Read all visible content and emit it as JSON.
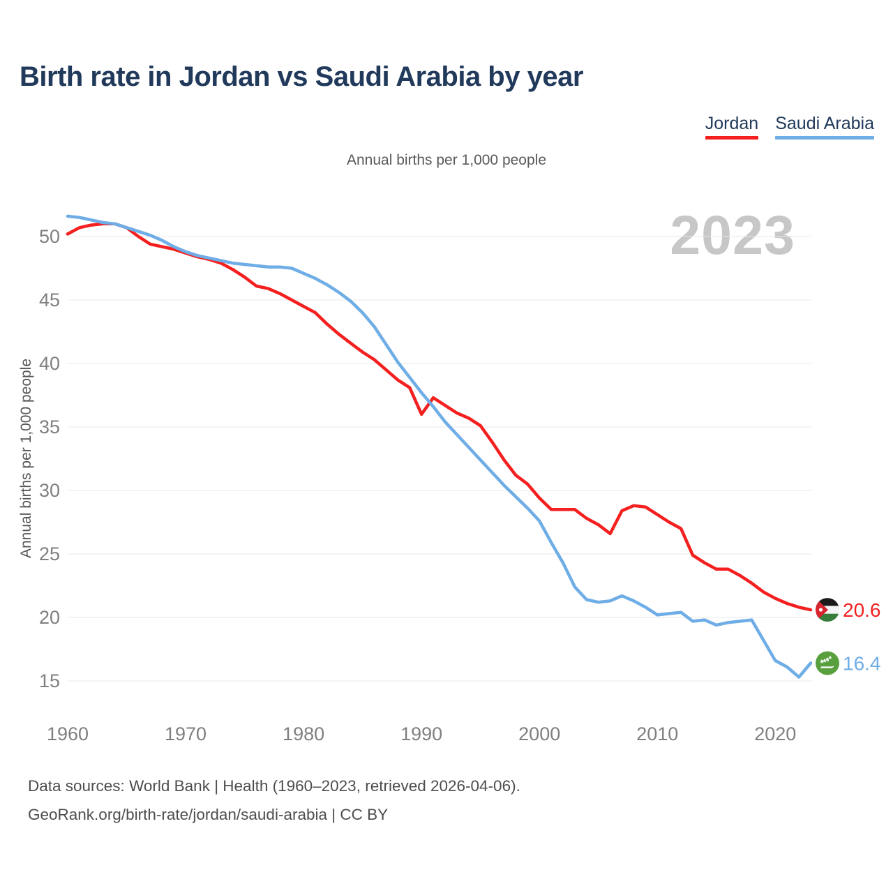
{
  "header": {
    "title": "Birth rate in Jordan vs Saudi Arabia by year"
  },
  "subtitle": "Annual births per 1,000 people",
  "watermark": "2023",
  "legend": {
    "items": [
      {
        "label": "Jordan",
        "color": "#f41f1f"
      },
      {
        "label": "Saudi Arabia",
        "color": "#6fade6"
      }
    ]
  },
  "footer": {
    "line1": "Data sources: World Bank | Health (1960–2023, retrieved 2026-04-06).",
    "line2": "GeoRank.org/birth-rate/jordan/saudi-arabia | CC BY"
  },
  "colors": {
    "jordan": "#f41f1f",
    "saudi": "#6fade6",
    "title_navy": "#21395a",
    "gridline": "#e9e9e9",
    "tick_gray": "#7f7f7f",
    "watermark_gray": "#c7c7c7"
  },
  "chart_data": {
    "type": "line",
    "title": "Birth rate in Jordan vs Saudi Arabia by year",
    "subtitle": "Annual births per 1,000 people",
    "xlabel": "",
    "ylabel": "Annual births per 1,000 people",
    "x_start": 1960,
    "x_end": 2023,
    "x_ticks": [
      1960,
      1970,
      1980,
      1990,
      2000,
      2010,
      2020
    ],
    "y_ticks": [
      15,
      20,
      25,
      30,
      35,
      40,
      45,
      50
    ],
    "ylim": [
      13.5,
      52.5
    ],
    "grid": "horizontal",
    "legend_position": "top-right",
    "series": [
      {
        "name": "Jordan",
        "color": "#f41f1f",
        "flag": "jordan",
        "end_label": "20.6",
        "values": [
          50.2,
          50.7,
          50.9,
          51.0,
          51.0,
          50.7,
          50.0,
          49.4,
          49.2,
          49.0,
          48.7,
          48.4,
          48.2,
          47.9,
          47.4,
          46.8,
          46.1,
          45.9,
          45.5,
          45.0,
          44.5,
          44.0,
          43.1,
          42.3,
          41.6,
          40.9,
          40.3,
          39.5,
          38.7,
          38.1,
          36.0,
          37.3,
          36.7,
          36.1,
          35.7,
          35.1,
          33.8,
          32.4,
          31.2,
          30.5,
          29.4,
          28.5,
          28.5,
          28.5,
          27.8,
          27.3,
          26.6,
          28.4,
          28.8,
          28.7,
          28.1,
          27.5,
          27.0,
          24.9,
          24.3,
          23.8,
          23.8,
          23.3,
          22.7,
          22.0,
          21.5,
          21.1,
          20.8,
          20.6
        ]
      },
      {
        "name": "Saudi Arabia",
        "color": "#6fade6",
        "flag": "saudi",
        "end_label": "16.4",
        "values": [
          51.6,
          51.5,
          51.3,
          51.1,
          51.0,
          50.7,
          50.4,
          50.1,
          49.7,
          49.2,
          48.8,
          48.5,
          48.3,
          48.1,
          47.9,
          47.8,
          47.7,
          47.6,
          47.6,
          47.5,
          47.1,
          46.7,
          46.2,
          45.6,
          44.9,
          44.0,
          42.9,
          41.5,
          40.1,
          38.9,
          37.7,
          36.6,
          35.4,
          34.4,
          33.4,
          32.4,
          31.4,
          30.4,
          29.5,
          28.6,
          27.6,
          25.9,
          24.3,
          22.4,
          21.4,
          21.2,
          21.3,
          21.7,
          21.3,
          20.8,
          20.2,
          20.3,
          20.4,
          19.7,
          19.8,
          19.4,
          19.6,
          19.7,
          19.8,
          18.2,
          16.6,
          16.1,
          15.3,
          16.4
        ]
      }
    ]
  }
}
